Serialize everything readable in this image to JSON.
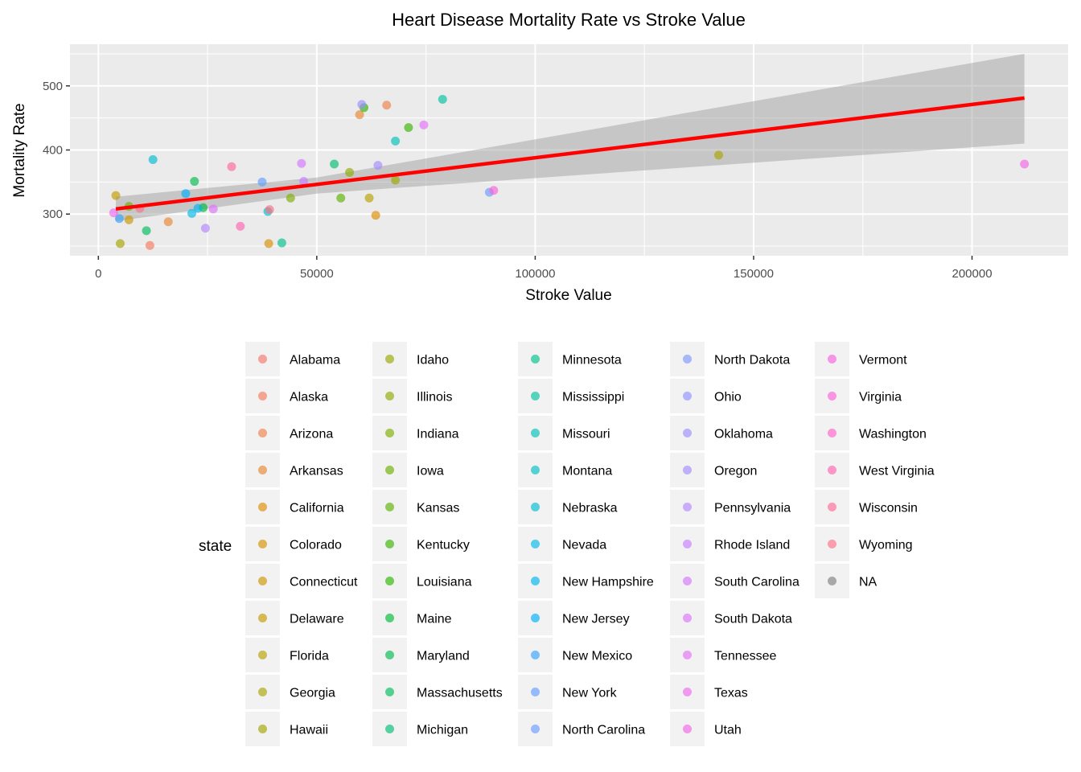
{
  "chart_data": {
    "type": "scatter",
    "title": "Heart Disease Mortality Rate vs Stroke Value",
    "xlabel": "Stroke Value",
    "ylabel": "Mortality Rate",
    "xlim": [
      -6500,
      222000
    ],
    "ylim": [
      235,
      565
    ],
    "x_ticks": [
      0,
      50000,
      100000,
      150000,
      200000
    ],
    "y_ticks": [
      300,
      400,
      500
    ],
    "grid": true,
    "legend_title": "state",
    "legend_position": "bottom",
    "legend_columns": 5,
    "trend_line": {
      "x": [
        4000,
        212000
      ],
      "y": [
        308,
        481
      ],
      "color": "#ff0000"
    },
    "confidence_band": {
      "x": [
        4000,
        50000,
        212000
      ],
      "lower": [
        289,
        332,
        410
      ],
      "upper": [
        327,
        357,
        550
      ]
    },
    "series": [
      {
        "name": "Alabama",
        "color": "#F8766D",
        "x": [],
        "y": []
      },
      {
        "name": "Alaska",
        "color": "#F47B5D",
        "x": [
          11800
        ],
        "y": [
          251
        ]
      },
      {
        "name": "Arizona",
        "color": "#EF7F4A",
        "x": [
          66000
        ],
        "y": [
          470
        ]
      },
      {
        "name": "Arkansas",
        "color": "#E88633",
        "x": [
          16000,
          59800
        ],
        "y": [
          288,
          455
        ]
      },
      {
        "name": "California",
        "color": "#DE8C00",
        "x": [
          63500
        ],
        "y": [
          298
        ]
      },
      {
        "name": "Colorado",
        "color": "#D59100",
        "x": [
          39000
        ],
        "y": [
          254
        ]
      },
      {
        "name": "Connecticut",
        "color": "#CD9600",
        "x": [
          7000
        ],
        "y": [
          291
        ]
      },
      {
        "name": "Delaware",
        "color": "#C49A00",
        "x": [
          4000
        ],
        "y": [
          329
        ]
      },
      {
        "name": "Florida",
        "color": "#B79F00",
        "x": [
          62000
        ],
        "y": [
          325
        ]
      },
      {
        "name": "Georgia",
        "color": "#A9A400",
        "x": [
          142000
        ],
        "y": [
          392
        ]
      },
      {
        "name": "Hawaii",
        "color": "#A3A500",
        "x": [
          5000
        ],
        "y": [
          254
        ]
      },
      {
        "name": "Idaho",
        "color": "#9AA800",
        "x": [
          68000
        ],
        "y": [
          353
        ]
      },
      {
        "name": "Illinois",
        "color": "#8EAB00",
        "x": [
          57500
        ],
        "y": [
          365
        ]
      },
      {
        "name": "Indiana",
        "color": "#7CAE00",
        "x": [
          44000
        ],
        "y": [
          325
        ]
      },
      {
        "name": "Iowa",
        "color": "#6BB100",
        "x": [
          7000
        ],
        "y": [
          312
        ]
      },
      {
        "name": "Kansas",
        "color": "#5BB300",
        "x": [
          55500
        ],
        "y": [
          325
        ]
      },
      {
        "name": "Kentucky",
        "color": "#39B600",
        "x": [
          71000
        ],
        "y": [
          435
        ]
      },
      {
        "name": "Louisiana",
        "color": "#2AB700",
        "x": [
          60800
        ],
        "y": [
          466
        ]
      },
      {
        "name": "Maine",
        "color": "#00BA38",
        "x": [
          24000
        ],
        "y": [
          310
        ]
      },
      {
        "name": "Maryland",
        "color": "#00BB4E",
        "x": [
          22000
        ],
        "y": [
          351
        ]
      },
      {
        "name": "Massachusetts",
        "color": "#00BD5C",
        "x": [
          11000
        ],
        "y": [
          274
        ]
      },
      {
        "name": "Michigan",
        "color": "#00BF74",
        "x": [
          54000
        ],
        "y": [
          378
        ]
      },
      {
        "name": "Minnesota",
        "color": "#00C08B",
        "x": [
          42000
        ],
        "y": [
          255
        ]
      },
      {
        "name": "Mississippi",
        "color": "#00C19F",
        "x": [
          78800
        ],
        "y": [
          479
        ]
      },
      {
        "name": "Missouri",
        "color": "#00C0B5",
        "x": [
          68000
        ],
        "y": [
          414
        ]
      },
      {
        "name": "Montana",
        "color": "#00BFC4",
        "x": [
          38800
        ],
        "y": [
          304
        ]
      },
      {
        "name": "Nebraska",
        "color": "#00BCD3",
        "x": [
          12500
        ],
        "y": [
          385
        ]
      },
      {
        "name": "Nevada",
        "color": "#00B8E7",
        "x": [
          21400
        ],
        "y": [
          301
        ]
      },
      {
        "name": "New Hampshire",
        "color": "#00B4EF",
        "x": [
          22800
        ],
        "y": [
          309
        ]
      },
      {
        "name": "New Jersey",
        "color": "#00ADFA",
        "x": [
          20000
        ],
        "y": [
          332
        ]
      },
      {
        "name": "New Mexico",
        "color": "#35A2FF",
        "x": [
          4800
        ],
        "y": [
          293
        ]
      },
      {
        "name": "New York",
        "color": "#619CFF",
        "x": [
          37500
        ],
        "y": [
          350
        ]
      },
      {
        "name": "North Carolina",
        "color": "#6C9BFF",
        "x": [
          89500
        ],
        "y": [
          334
        ]
      },
      {
        "name": "North Dakota",
        "color": "#7D97FF",
        "x": [],
        "y": []
      },
      {
        "name": "Ohio",
        "color": "#8F91FF",
        "x": [],
        "y": []
      },
      {
        "name": "Oklahoma",
        "color": "#9C8DFF",
        "x": [
          60300
        ],
        "y": [
          471
        ]
      },
      {
        "name": "Oregon",
        "color": "#A58AFF",
        "x": [
          64000
        ],
        "y": [
          376
        ]
      },
      {
        "name": "Pennsylvania",
        "color": "#B385FF",
        "x": [
          24500
        ],
        "y": [
          278
        ]
      },
      {
        "name": "Rhode Island",
        "color": "#C77CFF",
        "x": [
          47000
        ],
        "y": [
          351
        ]
      },
      {
        "name": "South Carolina",
        "color": "#D277FF",
        "x": [
          46500
        ],
        "y": [
          379
        ]
      },
      {
        "name": "South Dakota",
        "color": "#DB72FB",
        "x": [
          26300
        ],
        "y": [
          308
        ]
      },
      {
        "name": "Tennessee",
        "color": "#E36EF6",
        "x": [
          74500
        ],
        "y": [
          439
        ]
      },
      {
        "name": "Texas",
        "color": "#EC69EF",
        "x": [
          3500
        ],
        "y": [
          302
        ]
      },
      {
        "name": "Utah",
        "color": "#F365E6",
        "x": [
          212000
        ],
        "y": [
          378
        ]
      },
      {
        "name": "Vermont",
        "color": "#F763E0",
        "x": [],
        "y": []
      },
      {
        "name": "Virginia",
        "color": "#FB61D7",
        "x": [
          90500
        ],
        "y": [
          337
        ]
      },
      {
        "name": "Washington",
        "color": "#FD62C8",
        "x": [],
        "y": []
      },
      {
        "name": "West Virginia",
        "color": "#FF64B0",
        "x": [
          32500
        ],
        "y": [
          281
        ]
      },
      {
        "name": "Wisconsin",
        "color": "#FF6A98",
        "x": [
          30500
        ],
        "y": [
          374
        ]
      },
      {
        "name": "Wyoming",
        "color": "#FD6F86",
        "x": [
          39200,
          9500
        ],
        "y": [
          307,
          309
        ]
      },
      {
        "name": "NA",
        "color": "#7F7F7F",
        "x": [],
        "y": []
      }
    ]
  }
}
